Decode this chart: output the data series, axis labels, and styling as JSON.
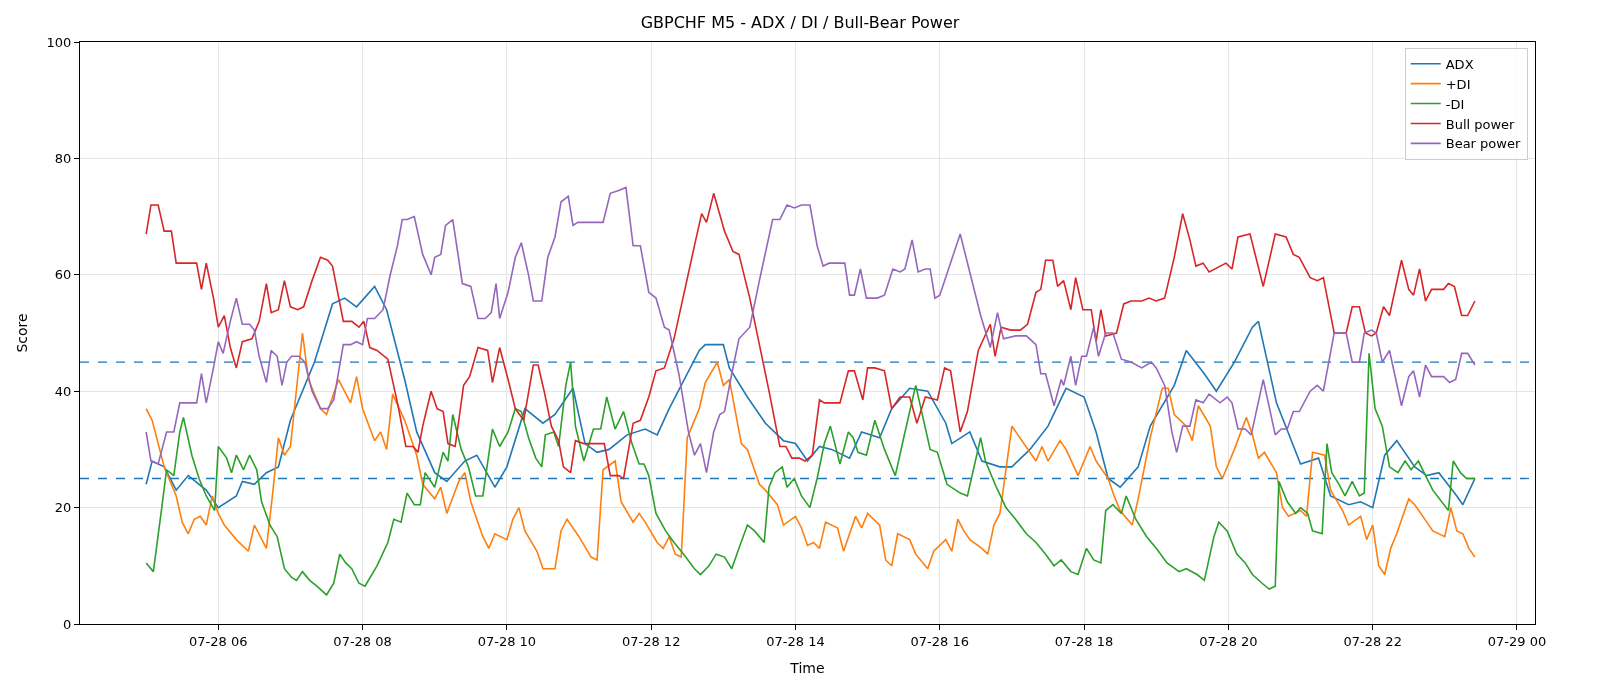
{
  "chart_data": {
    "type": "line",
    "title": "GBPCHF M5 - ADX / DI / Bull-Bear Power",
    "xlabel": "Time",
    "ylabel": "Score",
    "xlim": [
      "--07-28T04:05",
      "--07-29T00:15"
    ],
    "xticks": [
      {
        "value": "--07-28T06:00",
        "label": "07-28 06"
      },
      {
        "value": "--07-28T08:00",
        "label": "07-28 08"
      },
      {
        "value": "--07-28T10:00",
        "label": "07-28 10"
      },
      {
        "value": "--07-28T12:00",
        "label": "07-28 12"
      },
      {
        "value": "--07-28T14:00",
        "label": "07-28 14"
      },
      {
        "value": "--07-28T16:00",
        "label": "07-28 16"
      },
      {
        "value": "--07-28T18:00",
        "label": "07-28 18"
      },
      {
        "value": "--07-28T20:00",
        "label": "07-28 20"
      },
      {
        "value": "--07-28T22:00",
        "label": "07-28 22"
      },
      {
        "value": "--07-29T00:00",
        "label": "07-29 00"
      }
    ],
    "ylim": [
      0,
      100
    ],
    "yticks": [
      0,
      20,
      40,
      60,
      80,
      100
    ],
    "grid": true,
    "legend": "top right",
    "ref_lines": [
      {
        "axis": "y",
        "value": 45,
        "color": "#1f77b4",
        "line_style": "dashed"
      },
      {
        "axis": "y",
        "value": 25,
        "color": "#1f77b4",
        "line_style": "dashed"
      }
    ],
    "series": [
      {
        "name": "ADX",
        "color": "#1f77b4",
        "x": [
          "--07-28T05:00",
          "--07-28T05:05",
          "--07-28T05:15",
          "--07-28T05:25",
          "--07-28T05:35",
          "--07-28T05:50",
          "--07-28T06:00",
          "--07-28T06:15",
          "--07-28T06:20",
          "--07-28T06:30",
          "--07-28T06:40",
          "--07-28T06:50",
          "--07-28T07:00",
          "--07-28T07:20",
          "--07-28T07:35",
          "--07-28T07:45",
          "--07-28T07:55",
          "--07-28T08:10",
          "--07-28T08:20",
          "--07-28T08:35",
          "--07-28T08:45",
          "--07-28T09:00",
          "--07-28T09:10",
          "--07-28T09:25",
          "--07-28T09:35",
          "--07-28T09:50",
          "--07-28T10:00",
          "--07-28T10:15",
          "--07-28T10:30",
          "--07-28T10:40",
          "--07-28T10:55",
          "--07-28T11:05",
          "--07-28T11:15",
          "--07-28T11:25",
          "--07-28T11:40",
          "--07-28T11:55",
          "--07-28T12:05",
          "--07-28T12:15",
          "--07-28T12:40",
          "--07-28T12:45",
          "--07-28T13:00",
          "--07-28T13:05",
          "--07-28T13:20",
          "--07-28T13:35",
          "--07-28T13:50",
          "--07-28T14:00",
          "--07-28T14:10",
          "--07-28T14:20",
          "--07-28T14:30",
          "--07-28T14:45",
          "--07-28T14:55",
          "--07-28T15:10",
          "--07-28T15:20",
          "--07-28T15:35",
          "--07-28T15:50",
          "--07-28T16:05",
          "--07-28T16:10",
          "--07-28T16:25",
          "--07-28T16:35",
          "--07-28T16:50",
          "--07-28T17:00",
          "--07-28T17:15",
          "--07-28T17:30",
          "--07-28T17:45",
          "--07-28T18:00",
          "--07-28T18:10",
          "--07-28T18:20",
          "--07-28T18:30",
          "--07-28T18:45",
          "--07-28T18:55",
          "--07-28T19:15",
          "--07-28T19:25",
          "--07-28T19:40",
          "--07-28T19:50",
          "--07-28T20:05",
          "--07-28T20:20",
          "--07-28T20:25",
          "--07-28T20:40",
          "--07-28T21:00",
          "--07-28T21:15",
          "--07-28T21:25",
          "--07-28T21:40",
          "--07-28T21:50",
          "--07-28T22:00",
          "--07-28T22:10",
          "--07-28T22:20",
          "--07-28T22:35",
          "--07-28T22:45",
          "--07-28T22:55",
          "--07-28T23:10",
          "--07-28T23:15",
          "--07-28T23:25"
        ],
        "values": [
          24,
          28,
          27,
          23,
          25.5,
          23,
          20,
          22,
          24.5,
          24,
          26,
          27,
          35,
          45,
          55,
          56,
          54.5,
          58,
          54,
          42,
          33,
          26,
          24.5,
          28,
          29,
          23.5,
          27,
          37,
          34.5,
          36,
          40.5,
          31,
          29.5,
          30,
          32.5,
          33.5,
          32.5,
          37,
          47,
          48,
          48,
          44,
          39,
          34.5,
          31.5,
          31,
          28,
          30.5,
          30,
          28.5,
          33,
          32,
          37,
          40.5,
          40,
          34.5,
          31,
          33,
          28,
          27,
          27,
          30,
          34,
          40.5,
          39,
          33,
          25,
          23.5,
          27,
          34,
          41,
          47,
          43,
          40,
          45,
          51,
          52,
          38,
          27.5,
          28.5,
          22,
          20.5,
          21,
          20,
          29,
          31.5,
          27,
          25.5,
          26,
          22,
          20.5,
          25
        ]
      },
      {
        "name": "+DI",
        "color": "#ff7f0e",
        "x": [
          "--07-28T05:00",
          "--07-28T05:05",
          "--07-28T05:15",
          "--07-28T05:25",
          "--07-28T05:30",
          "--07-28T05:35",
          "--07-28T05:40",
          "--07-28T05:45",
          "--07-28T05:50",
          "--07-28T05:55",
          "--07-28T06:00",
          "--07-28T06:05",
          "--07-28T06:15",
          "--07-28T06:25",
          "--07-28T06:30",
          "--07-28T06:40",
          "--07-28T06:45",
          "--07-28T06:50",
          "--07-28T06:55",
          "--07-28T07:00",
          "--07-28T07:10",
          "--07-28T07:15",
          "--07-28T07:25",
          "--07-28T07:30",
          "--07-28T07:40",
          "--07-28T07:50",
          "--07-28T07:55",
          "--07-28T08:00",
          "--07-28T08:10",
          "--07-28T08:15",
          "--07-28T08:20",
          "--07-28T08:25",
          "--07-28T08:35",
          "--07-28T08:45",
          "--07-28T08:50",
          "--07-28T09:00",
          "--07-28T09:05",
          "--07-28T09:10",
          "--07-28T09:20",
          "--07-28T09:25",
          "--07-28T09:30",
          "--07-28T09:35",
          "--07-28T09:40",
          "--07-28T09:45",
          "--07-28T09:50",
          "--07-28T10:00",
          "--07-28T10:05",
          "--07-28T10:10",
          "--07-28T10:15",
          "--07-28T10:25",
          "--07-28T10:30",
          "--07-28T10:40",
          "--07-28T10:45",
          "--07-28T10:50",
          "--07-28T11:00",
          "--07-28T11:10",
          "--07-28T11:15",
          "--07-28T11:20",
          "--07-28T11:30",
          "--07-28T11:35",
          "--07-28T11:45",
          "--07-28T11:50",
          "--07-28T11:55",
          "--07-28T12:05",
          "--07-28T12:10",
          "--07-28T12:15",
          "--07-28T12:20",
          "--07-28T12:25",
          "--07-28T12:30",
          "--07-28T12:40",
          "--07-28T12:45",
          "--07-28T12:55",
          "--07-28T13:00",
          "--07-28T13:05",
          "--07-28T13:15",
          "--07-28T13:20",
          "--07-28T13:30",
          "--07-28T13:35",
          "--07-28T13:45",
          "--07-28T13:50",
          "--07-28T14:00",
          "--07-28T14:05",
          "--07-28T14:10",
          "--07-28T14:15",
          "--07-28T14:20",
          "--07-28T14:25",
          "--07-28T14:35",
          "--07-28T14:40",
          "--07-28T14:50",
          "--07-28T14:55",
          "--07-28T15:00",
          "--07-28T15:10",
          "--07-28T15:15",
          "--07-28T15:20",
          "--07-28T15:25",
          "--07-28T15:35",
          "--07-28T15:40",
          "--07-28T15:50",
          "--07-28T15:55",
          "--07-28T16:05",
          "--07-28T16:10",
          "--07-28T16:15",
          "--07-28T16:20",
          "--07-28T16:25",
          "--07-28T16:35",
          "--07-28T16:40",
          "--07-28T16:45",
          "--07-28T16:50",
          "--07-28T17:00",
          "--07-28T17:10",
          "--07-28T17:20",
          "--07-28T17:25",
          "--07-28T17:30",
          "--07-28T17:40",
          "--07-28T17:45",
          "--07-28T17:55",
          "--07-28T18:05",
          "--07-28T18:10",
          "--07-28T18:20",
          "--07-28T18:25",
          "--07-28T18:30",
          "--07-28T18:40",
          "--07-28T18:45",
          "--07-28T18:55",
          "--07-28T19:05",
          "--07-28T19:10",
          "--07-28T19:15",
          "--07-28T19:25",
          "--07-28T19:30",
          "--07-28T19:35",
          "--07-28T19:45",
          "--07-28T19:50",
          "--07-28T19:55",
          "--07-28T20:05",
          "--07-28T20:15",
          "--07-28T20:20",
          "--07-28T20:25",
          "--07-28T20:30",
          "--07-28T20:40",
          "--07-28T20:45",
          "--07-28T20:50",
          "--07-28T21:00",
          "--07-28T21:05",
          "--07-28T21:10",
          "--07-28T21:20",
          "--07-28T21:25",
          "--07-28T21:35",
          "--07-28T21:40",
          "--07-28T21:50",
          "--07-28T21:55",
          "--07-28T22:00",
          "--07-28T22:05",
          "--07-28T22:10",
          "--07-28T22:15",
          "--07-28T22:20",
          "--07-28T22:30",
          "--07-28T22:35",
          "--07-28T22:45",
          "--07-28T22:50",
          "--07-28T23:00",
          "--07-28T23:05",
          "--07-28T23:10",
          "--07-28T23:15",
          "--07-28T23:20",
          "--07-28T23:25"
        ],
        "values": [
          37,
          35,
          27,
          22,
          17.5,
          15.5,
          18,
          18.5,
          17,
          22,
          19,
          17,
          14.5,
          12.5,
          17,
          13,
          22,
          32,
          29,
          30.5,
          50,
          42,
          37,
          36,
          42,
          38,
          42.5,
          37,
          31.5,
          33,
          30,
          39.5,
          35,
          29,
          24,
          21.5,
          23.5,
          19,
          24.5,
          26,
          21,
          18,
          15,
          13,
          15.5,
          14.5,
          18,
          20,
          16,
          12.5,
          9.5,
          9.5,
          16,
          18,
          15,
          11.5,
          11,
          26.5,
          28,
          21,
          17.5,
          19,
          17.5,
          14,
          13,
          15,
          12,
          11.5,
          32,
          37,
          41.5,
          45,
          41,
          42,
          31,
          30,
          24,
          23,
          20.5,
          17,
          18.5,
          16.5,
          13.5,
          14,
          13,
          17.5,
          16.5,
          12.5,
          18.5,
          16.5,
          19,
          17,
          11,
          10,
          15.5,
          14.5,
          12,
          9.5,
          12.5,
          14.5,
          12.5,
          18,
          16,
          14.5,
          13,
          12,
          17,
          19,
          34,
          31,
          28,
          30.5,
          28,
          31.5,
          30,
          25.5,
          30.5,
          28,
          25,
          22,
          19.5,
          17,
          21.5,
          32,
          40.5,
          40.5,
          36,
          34,
          31.5,
          37.5,
          34,
          27,
          25,
          30,
          35.5,
          32.5,
          28.5,
          29.5,
          26,
          20,
          18.5,
          19.5,
          18.5,
          29.5,
          29,
          23,
          19.5,
          17,
          18.5,
          14.5,
          17,
          10,
          8.5,
          13,
          15.5,
          21.5,
          20.5,
          17.5,
          16,
          15,
          20,
          16,
          15.5,
          13,
          11.5
        ]
      },
      {
        "name": "-DI",
        "color": "#2ca02c",
        "x": [
          "--07-28T05:00",
          "--07-28T05:06",
          "--07-28T05:13",
          "--07-28T05:17",
          "--07-28T05:23",
          "--07-28T05:28",
          "--07-28T05:31",
          "--07-28T05:38",
          "--07-28T05:44",
          "--07-28T05:50",
          "--07-28T05:57",
          "--07-28T06:00",
          "--07-28T06:07",
          "--07-28T06:11",
          "--07-28T06:15",
          "--07-28T06:21",
          "--07-28T06:26",
          "--07-28T06:32",
          "--07-28T06:36",
          "--07-28T06:43",
          "--07-28T06:49",
          "--07-28T06:55",
          "--07-28T07:01",
          "--07-28T07:05",
          "--07-28T07:10",
          "--07-28T07:16",
          "--07-28T07:22",
          "--07-28T07:30",
          "--07-28T07:36",
          "--07-28T07:41",
          "--07-28T07:46",
          "--07-28T07:51",
          "--07-28T07:57",
          "--07-28T08:02",
          "--07-28T08:12",
          "--07-28T08:21",
          "--07-28T08:26",
          "--07-28T08:32",
          "--07-28T08:37",
          "--07-28T08:43",
          "--07-28T08:48",
          "--07-28T08:52",
          "--07-28T09:00",
          "--07-28T09:07",
          "--07-28T09:11",
          "--07-28T09:15",
          "--07-28T09:22",
          "--07-28T09:28",
          "--07-28T09:34",
          "--07-28T09:40",
          "--07-28T09:48",
          "--07-28T09:54",
          "--07-28T10:01",
          "--07-28T10:07",
          "--07-28T10:12",
          "--07-28T10:18",
          "--07-28T10:24",
          "--07-28T10:29",
          "--07-28T10:32",
          "--07-28T10:39",
          "--07-28T10:43",
          "--07-28T10:49",
          "--07-28T10:53",
          "--07-28T10:57",
          "--07-28T11:04",
          "--07-28T11:12",
          "--07-28T11:18",
          "--07-28T11:23",
          "--07-28T11:30",
          "--07-28T11:37",
          "--07-28T11:44",
          "--07-28T11:50",
          "--07-28T11:54",
          "--07-28T11:58",
          "--07-28T12:04",
          "--07-28T12:12",
          "--07-28T12:19",
          "--07-28T12:27",
          "--07-28T12:36",
          "--07-28T12:41",
          "--07-28T12:48",
          "--07-28T12:54",
          "--07-28T13:01",
          "--07-28T13:07",
          "--07-28T13:13",
          "--07-28T13:20",
          "--07-28T13:26",
          "--07-28T13:34",
          "--07-28T13:38",
          "--07-28T13:43",
          "--07-28T13:49",
          "--07-28T13:53",
          "--07-28T13:59",
          "--07-28T14:05",
          "--07-28T14:12",
          "--07-28T14:18",
          "--07-28T14:24",
          "--07-28T14:29",
          "--07-28T14:37",
          "--07-28T14:44",
          "--07-28T14:48",
          "--07-28T14:52",
          "--07-28T14:59",
          "--07-28T15:06",
          "--07-28T15:14",
          "--07-28T15:23",
          "--07-28T15:30",
          "--07-28T15:40",
          "--07-28T15:52",
          "--07-28T15:58",
          "--07-28T16:06",
          "--07-28T16:17",
          "--07-28T16:23",
          "--07-28T16:34",
          "--07-28T16:38",
          "--07-28T16:46",
          "--07-28T16:55",
          "--07-28T17:03",
          "--07-28T17:12",
          "--07-28T17:20",
          "--07-28T17:28",
          "--07-28T17:35",
          "--07-28T17:41",
          "--07-28T17:49",
          "--07-28T17:55",
          "--07-28T18:02",
          "--07-28T18:08",
          "--07-28T18:14",
          "--07-28T18:18",
          "--07-28T18:24",
          "--07-28T18:31",
          "--07-28T18:35",
          "--07-28T18:43",
          "--07-28T18:52",
          "--07-28T19:00",
          "--07-28T19:09",
          "--07-28T19:19",
          "--07-28T19:25",
          "--07-28T19:34",
          "--07-28T19:40",
          "--07-28T19:48",
          "--07-28T19:52",
          "--07-28T19:59",
          "--07-28T20:07",
          "--07-28T20:14",
          "--07-28T20:20",
          "--07-28T20:28",
          "--07-28T20:34",
          "--07-28T20:39",
          "--07-28T20:42",
          "--07-28T20:49",
          "--07-28T20:56",
          "--07-28T21:00",
          "--07-28T21:06",
          "--07-28T21:10",
          "--07-28T21:18",
          "--07-28T21:22",
          "--07-28T21:26",
          "--07-28T21:32",
          "--07-28T21:37",
          "--07-28T21:43",
          "--07-28T21:49",
          "--07-28T21:53",
          "--07-28T21:57",
          "--07-28T22:02",
          "--07-28T22:08",
          "--07-28T22:14",
          "--07-28T22:21",
          "--07-28T22:27",
          "--07-28T22:32",
          "--07-28T22:38",
          "--07-28T22:44",
          "--07-28T22:50",
          "--07-28T23:03",
          "--07-28T23:07",
          "--07-28T23:13",
          "--07-28T23:18",
          "--07-28T23:25"
        ],
        "values": [
          10.5,
          9,
          20,
          26.5,
          25.5,
          33,
          35.5,
          29,
          25,
          22,
          19.5,
          30.5,
          28.5,
          26,
          29,
          26.5,
          29,
          26.5,
          21,
          17,
          15,
          9.5,
          8,
          7.5,
          9,
          7.5,
          6.5,
          5,
          7,
          12,
          10.5,
          9.5,
          7,
          6.5,
          10,
          14,
          18,
          17.5,
          22.5,
          20.5,
          20.5,
          26,
          23.5,
          29.5,
          28,
          36,
          30,
          27,
          22,
          22,
          33.5,
          30.5,
          33,
          37,
          36.5,
          32,
          28.5,
          27,
          32.5,
          33,
          30.5,
          41,
          45,
          34,
          28,
          33.5,
          33.5,
          39,
          33.5,
          36.5,
          31,
          27.5,
          27.5,
          25.5,
          19,
          16,
          14,
          12,
          9.5,
          8.5,
          10,
          12,
          11.5,
          9.5,
          13,
          17,
          16,
          14,
          23.5,
          26,
          27,
          23.5,
          25,
          22,
          20,
          25,
          31,
          34,
          27.5,
          33,
          32,
          29.5,
          29,
          35,
          30,
          25.5,
          32,
          41,
          30,
          29.5,
          24,
          22.5,
          22,
          32,
          28,
          24,
          20,
          18,
          15.5,
          14,
          12,
          10,
          11,
          9,
          8.5,
          13,
          11,
          10.5,
          19.5,
          20.5,
          19,
          22,
          18,
          15,
          13,
          10.5,
          9,
          9.5,
          8.5,
          7.5,
          15,
          17.5,
          16,
          12,
          10.5,
          8.5,
          7,
          6,
          6.5,
          24.5,
          21,
          19,
          20,
          19,
          16,
          15.5,
          31,
          26,
          24,
          22,
          24.5,
          22,
          22.5,
          46.5,
          37,
          34,
          27,
          26,
          28,
          26.5,
          28,
          25.5,
          23,
          19.5,
          28,
          26,
          25,
          25
        ]
      },
      {
        "name": "Bull power",
        "color": "#d62728",
        "x": [
          "--07-28T05:00",
          "--07-28T05:04",
          "--07-28T05:10",
          "--07-28T05:15",
          "--07-28T05:21",
          "--07-28T05:25",
          "--07-28T05:42",
          "--07-28T05:46",
          "--07-28T05:50",
          "--07-28T05:56",
          "--07-28T06:00",
          "--07-28T06:05",
          "--07-28T06:10",
          "--07-28T06:15",
          "--07-28T06:20",
          "--07-28T06:28",
          "--07-28T06:34",
          "--07-28T06:40",
          "--07-28T06:44",
          "--07-28T06:50",
          "--07-28T06:55",
          "--07-28T07:00",
          "--07-28T07:06",
          "--07-28T07:11",
          "--07-28T07:18",
          "--07-28T07:25",
          "--07-28T07:31",
          "--07-28T07:35",
          "--07-28T07:44",
          "--07-28T07:51",
          "--07-28T07:57",
          "--07-28T08:01",
          "--07-28T08:06",
          "--07-28T08:12",
          "--07-28T08:21",
          "--07-28T08:29",
          "--07-28T08:36",
          "--07-28T08:42",
          "--07-28T08:46",
          "--07-28T08:50",
          "--07-28T08:57",
          "--07-28T09:02",
          "--07-28T09:07",
          "--07-28T09:11",
          "--07-28T09:17",
          "--07-28T09:24",
          "--07-28T09:29",
          "--07-28T09:36",
          "--07-28T09:44",
          "--07-28T09:48",
          "--07-28T09:54",
          "--07-28T10:01",
          "--07-28T10:07",
          "--07-28T10:14",
          "--07-28T10:22",
          "--07-28T10:26",
          "--07-28T10:31",
          "--07-28T10:37",
          "--07-28T10:43",
          "--07-28T10:47",
          "--07-28T10:53",
          "--07-28T10:57",
          "--07-28T11:04",
          "--07-28T11:21",
          "--07-28T11:26",
          "--07-28T11:33",
          "--07-28T11:37",
          "--07-28T11:45",
          "--07-28T11:51",
          "--07-28T11:58",
          "--07-28T12:04",
          "--07-28T12:11",
          "--07-28T12:19",
          "--07-28T12:36",
          "--07-28T12:42",
          "--07-28T12:46",
          "--07-28T12:52",
          "--07-28T13:01",
          "--07-28T13:08",
          "--07-28T13:13",
          "--07-28T13:22",
          "--07-28T13:30",
          "--07-28T13:38",
          "--07-28T13:47",
          "--07-28T13:52",
          "--07-28T13:57",
          "--07-28T14:03",
          "--07-28T14:08",
          "--07-28T14:14",
          "--07-28T14:20",
          "--07-28T14:24",
          "--07-28T14:37",
          "--07-28T14:44",
          "--07-28T14:49",
          "--07-28T14:56",
          "--07-28T15:00",
          "--07-28T15:06",
          "--07-28T15:14",
          "--07-28T15:20",
          "--07-28T15:27",
          "--07-28T15:35",
          "--07-28T15:41",
          "--07-28T15:48",
          "--07-28T15:58",
          "--07-28T16:04",
          "--07-28T16:09",
          "--07-28T16:17",
          "--07-28T16:23",
          "--07-28T16:32",
          "--07-28T16:42",
          "--07-28T16:46",
          "--07-28T16:51",
          "--07-28T16:59",
          "--07-28T17:07",
          "--07-28T17:13",
          "--07-28T17:20",
          "--07-28T17:24",
          "--07-28T17:28",
          "--07-28T17:34",
          "--07-28T17:38",
          "--07-28T17:43",
          "--07-28T17:49",
          "--07-28T17:53",
          "--07-28T17:59",
          "--07-28T18:06",
          "--07-28T18:10",
          "--07-28T18:14",
          "--07-28T18:18",
          "--07-28T18:27",
          "--07-28T18:33",
          "--07-28T18:39",
          "--07-28T18:48",
          "--07-28T18:54",
          "--07-28T19:00",
          "--07-28T19:07",
          "--07-28T19:15",
          "--07-28T19:22",
          "--07-28T19:28",
          "--07-28T19:33",
          "--07-28T19:39",
          "--07-28T19:44",
          "--07-28T19:58",
          "--07-28T20:03",
          "--07-28T20:08",
          "--07-28T20:18",
          "--07-28T20:29",
          "--07-28T20:39",
          "--07-28T20:48",
          "--07-28T20:54",
          "--07-28T20:59",
          "--07-28T21:08",
          "--07-28T21:14",
          "--07-28T21:19",
          "--07-28T21:28",
          "--07-28T21:38",
          "--07-28T21:43",
          "--07-28T21:49",
          "--07-28T21:54",
          "--07-28T21:59",
          "--07-28T22:03",
          "--07-28T22:09",
          "--07-28T22:14",
          "--07-28T22:24",
          "--07-28T22:30",
          "--07-28T22:34",
          "--07-28T22:39",
          "--07-28T22:44",
          "--07-28T22:49",
          "--07-28T22:59",
          "--07-28T23:03",
          "--07-28T23:08",
          "--07-28T23:14",
          "--07-28T23:19",
          "--07-28T23:25"
        ],
        "values": [
          67,
          72,
          72,
          67.5,
          67.5,
          62,
          62,
          57.5,
          62,
          56,
          51,
          53,
          47.5,
          44,
          48.5,
          49,
          52,
          58.5,
          53.5,
          54,
          59,
          54.5,
          54,
          54.5,
          59,
          63,
          62.5,
          61.5,
          52,
          52,
          51,
          52,
          47.5,
          47,
          45.5,
          38,
          30.5,
          30.5,
          29.5,
          34,
          40,
          37,
          36.5,
          31,
          30.5,
          41,
          42.5,
          47.5,
          47,
          41.5,
          47.5,
          42,
          37,
          35,
          44.5,
          44.5,
          40,
          34,
          31.5,
          27,
          26,
          31.5,
          31,
          31,
          25.5,
          25.5,
          25,
          34.5,
          35,
          39,
          43.5,
          44,
          49,
          65,
          70.5,
          69,
          74,
          67.5,
          64,
          63.5,
          56,
          48,
          40,
          30.5,
          30.5,
          28.5,
          28.5,
          28,
          29,
          38.5,
          38,
          38,
          43.5,
          43.5,
          38.5,
          44,
          44,
          43.5,
          37,
          39,
          39,
          34.5,
          39,
          38.5,
          44,
          43.5,
          33,
          36.5,
          47,
          51.5,
          46,
          51,
          50.5,
          50.5,
          51.5,
          57,
          57.5,
          62.5,
          62.5,
          58,
          59,
          54,
          59.5,
          54,
          54,
          48.5,
          54,
          49.5,
          50,
          55,
          55.5,
          55.5,
          56,
          55.5,
          56,
          63,
          70.5,
          66,
          61.5,
          62,
          60.5,
          62,
          61,
          66.5,
          67,
          58,
          67,
          66.5,
          63.5,
          63,
          59.5,
          59,
          59.5,
          50,
          50,
          54.5,
          54.5,
          50,
          49.5,
          50,
          54.5,
          53,
          62.5,
          57.5,
          56.5,
          61,
          55.5,
          57.5,
          57.5,
          58.5,
          58,
          53,
          53,
          55.5
        ]
      },
      {
        "name": "Bear power",
        "color": "#9467bd",
        "x": [
          "--07-28T05:00",
          "--07-28T05:04",
          "--07-28T05:10",
          "--07-28T05:17",
          "--07-28T05:23",
          "--07-28T05:28",
          "--07-28T05:42",
          "--07-28T05:46",
          "--07-28T05:50",
          "--07-28T05:56",
          "--07-28T06:00",
          "--07-28T06:04",
          "--07-28T06:10",
          "--07-28T06:15",
          "--07-28T06:20",
          "--07-28T06:26",
          "--07-28T06:30",
          "--07-28T06:34",
          "--07-28T06:40",
          "--07-28T06:44",
          "--07-28T06:49",
          "--07-28T06:53",
          "--07-28T06:57",
          "--07-28T07:01",
          "--07-28T07:07",
          "--07-28T07:12",
          "--07-28T07:18",
          "--07-28T07:25",
          "--07-28T07:31",
          "--07-28T07:36",
          "--07-28T07:44",
          "--07-28T07:50",
          "--07-28T07:55",
          "--07-28T08:00",
          "--07-28T08:04",
          "--07-28T08:10",
          "--07-28T08:17",
          "--07-28T08:23",
          "--07-28T08:29",
          "--07-28T08:33",
          "--07-28T08:37",
          "--07-28T08:43",
          "--07-28T08:50",
          "--07-28T08:57",
          "--07-28T09:00",
          "--07-28T09:05",
          "--07-28T09:09",
          "--07-28T09:15",
          "--07-28T09:19",
          "--07-28T09:23",
          "--07-28T09:30",
          "--07-28T09:36",
          "--07-28T09:42",
          "--07-28T09:47",
          "--07-28T09:51",
          "--07-28T09:54",
          "--07-28T10:01",
          "--07-28T10:07",
          "--07-28T10:12",
          "--07-28T10:18",
          "--07-28T10:22",
          "--07-28T10:29",
          "--07-28T10:34",
          "--07-28T10:40",
          "--07-28T10:45",
          "--07-28T10:51",
          "--07-28T10:55",
          "--07-28T10:59",
          "--07-28T11:20",
          "--07-28T11:26",
          "--07-28T11:33",
          "--07-28T11:39",
          "--07-28T11:45",
          "--07-28T11:51",
          "--07-28T11:58",
          "--07-28T12:04",
          "--07-28T12:11",
          "--07-28T12:15",
          "--07-28T12:23",
          "--07-28T12:31",
          "--07-28T12:36",
          "--07-28T12:41",
          "--07-28T12:46",
          "--07-28T12:52",
          "--07-28T12:57",
          "--07-28T13:01",
          "--07-28T13:07",
          "--07-28T13:13",
          "--07-28T13:22",
          "--07-28T13:30",
          "--07-28T13:41",
          "--07-28T13:47",
          "--07-28T13:53",
          "--07-28T13:59",
          "--07-28T14:05",
          "--07-28T14:12",
          "--07-28T14:18",
          "--07-28T14:23",
          "--07-28T14:28",
          "--07-28T14:41",
          "--07-28T14:45",
          "--07-28T14:49",
          "--07-28T14:54",
          "--07-28T14:59",
          "--07-28T15:08",
          "--07-28T15:14",
          "--07-28T15:21",
          "--07-28T15:27",
          "--07-28T15:31",
          "--07-28T15:37",
          "--07-28T15:42",
          "--07-28T15:48",
          "--07-28T15:52",
          "--07-28T15:56",
          "--07-28T16:00",
          "--07-28T16:17",
          "--07-28T16:34",
          "--07-28T16:42",
          "--07-28T16:48",
          "--07-28T16:53",
          "--07-28T17:03",
          "--07-28T17:12",
          "--07-28T17:20",
          "--07-28T17:24",
          "--07-28T17:28",
          "--07-28T17:35",
          "--07-28T17:41",
          "--07-28T17:43",
          "--07-28T17:49",
          "--07-28T17:53",
          "--07-28T17:58",
          "--07-28T18:02",
          "--07-28T18:08",
          "--07-28T18:12",
          "--07-28T18:18",
          "--07-28T18:24",
          "--07-28T18:31",
          "--07-28T18:39",
          "--07-28T18:48",
          "--07-28T18:56",
          "--07-28T19:00",
          "--07-28T19:07",
          "--07-28T19:13",
          "--07-28T19:17",
          "--07-28T19:22",
          "--07-28T19:28",
          "--07-28T19:33",
          "--07-28T19:39",
          "--07-28T19:44",
          "--07-28T19:53",
          "--07-28T19:59",
          "--07-28T20:03",
          "--07-28T20:08",
          "--07-28T20:14",
          "--07-28T20:19",
          "--07-28T20:29",
          "--07-28T20:39",
          "--07-28T20:44",
          "--07-28T20:49",
          "--07-28T20:54",
          "--07-28T20:59",
          "--07-28T21:08",
          "--07-28T21:14",
          "--07-28T21:19",
          "--07-28T21:28",
          "--07-28T21:38",
          "--07-28T21:43",
          "--07-28T21:49",
          "--07-28T21:53",
          "--07-28T21:59",
          "--07-28T22:03",
          "--07-28T22:08",
          "--07-28T22:14",
          "--07-28T22:24",
          "--07-28T22:30",
          "--07-28T22:34",
          "--07-28T22:39",
          "--07-28T22:44",
          "--07-28T22:49",
          "--07-28T22:59",
          "--07-28T23:04",
          "--07-28T23:09",
          "--07-28T23:14",
          "--07-28T23:19",
          "--07-28T23:25"
        ],
        "values": [
          33,
          28,
          27.5,
          33,
          33,
          38,
          38,
          43,
          38,
          44,
          48.5,
          46.5,
          52,
          56,
          51.5,
          51.5,
          50.5,
          46,
          41.5,
          47,
          46,
          41,
          45,
          46,
          46,
          45,
          40,
          37,
          37,
          38.5,
          48,
          48,
          48.5,
          48,
          52.5,
          52.5,
          54,
          60,
          65,
          69.5,
          69.5,
          70,
          63.5,
          60,
          63,
          63.5,
          68.5,
          69.5,
          64,
          58.5,
          58,
          52.5,
          52.5,
          53.5,
          58.5,
          52.5,
          57,
          63,
          65.5,
          60,
          55.5,
          55.5,
          63,
          66.5,
          72.5,
          73.5,
          68.5,
          69,
          69,
          74,
          74.5,
          75,
          65,
          65,
          57,
          56,
          51,
          50.5,
          43,
          33,
          29,
          31,
          26,
          33,
          36,
          36.5,
          43,
          49,
          51,
          59,
          69.5,
          69.5,
          72,
          71.5,
          72,
          72,
          65,
          61.5,
          62,
          62,
          56.5,
          56.5,
          61,
          56,
          56,
          56.5,
          61,
          60.5,
          61,
          66,
          60.5,
          61,
          61,
          56,
          56.5,
          67,
          53,
          47.5,
          53.5,
          49,
          49.5,
          49.5,
          48,
          43,
          43,
          37.5,
          42,
          41,
          46,
          41,
          46,
          46,
          51,
          46,
          50,
          50,
          45.5,
          45,
          44,
          45,
          44,
          41,
          33,
          29.5,
          34,
          34,
          38.5,
          38,
          39.5,
          38,
          39,
          38,
          33.5,
          33.5,
          32.5,
          42,
          32.5,
          33.5,
          33.5,
          36.5,
          36.5,
          40,
          41,
          40,
          50,
          50,
          45,
          45,
          50,
          50.5,
          50,
          45,
          47,
          37.5,
          42.5,
          43.5,
          39,
          44.5,
          42.5,
          42.5,
          41.5,
          42,
          46.5,
          46.5,
          44.5
        ]
      }
    ]
  }
}
